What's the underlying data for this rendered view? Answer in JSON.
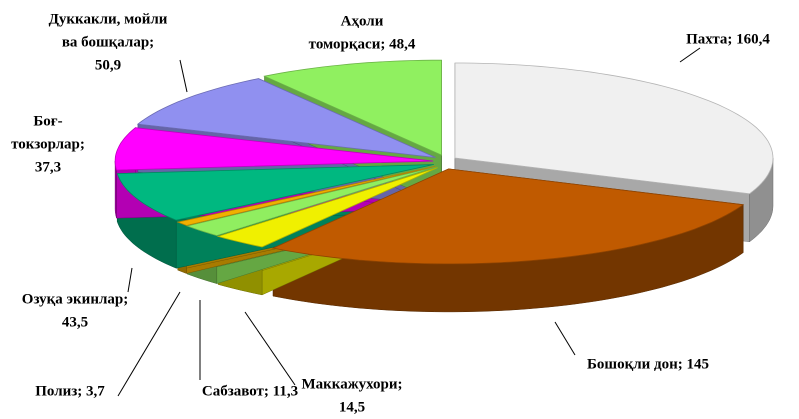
{
  "chart_data": {
    "type": "pie3d",
    "values": [
      160.4,
      145,
      14.5,
      11.3,
      3.7,
      43.5,
      37.3,
      50.9,
      48.4
    ],
    "labels": [
      [
        "Пахта; 160,4"
      ],
      [
        "Бошоқли дон; 145"
      ],
      [
        "Маккажухори;",
        "14,5"
      ],
      [
        "Сабзавот; 11,3"
      ],
      [
        "Полиз; 3,7"
      ],
      [
        "Озуқа экинлар;",
        "43,5"
      ],
      [
        "Боғ-",
        "токзорлар;",
        "37,3"
      ],
      [
        "Дуккакли, мойли",
        "ва бошқалар;",
        "50,9"
      ],
      [
        "Аҳоли",
        "томорқаси; 48,4"
      ]
    ],
    "colors": [
      "#f0f0f0",
      "#c05a00",
      "#f0f000",
      "#90ee60",
      "#f0b000",
      "#00b880",
      "#ff00ff",
      "#9090f0",
      "#90f060"
    ]
  }
}
